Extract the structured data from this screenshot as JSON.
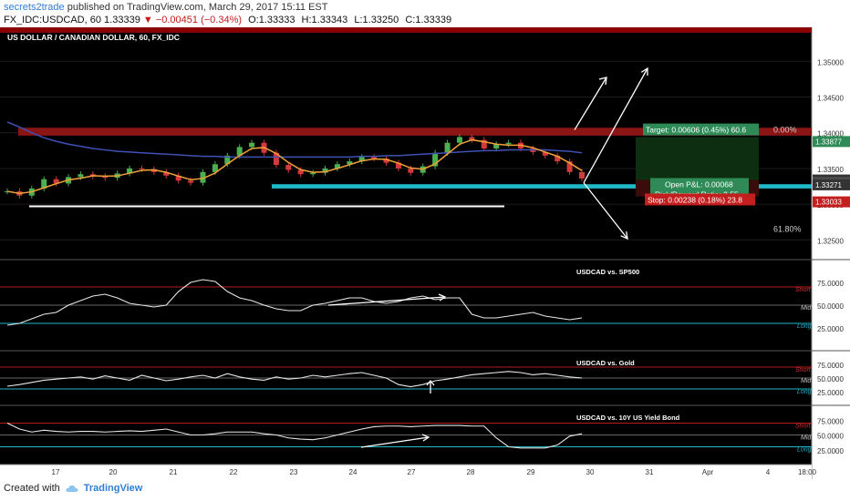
{
  "header": {
    "author": "secrets2trade",
    "published_text": "published on TradingView.com, March 29, 2017 15:11 EST",
    "symbol_line": "FX_IDC:USDCAD, 60",
    "last": "1.33339",
    "change": "−0.00451 (−0.34%)",
    "open": "O:1.33333",
    "high": "H:1.33343",
    "low": "L:1.33250",
    "close": "C:1.33339"
  },
  "chart_data": {
    "type": "line",
    "title": "US DOLLAR / CANADIAN DOLLAR, 60, FX_IDC",
    "price_axis": [
      "1.35000",
      "1.34500",
      "1.34000",
      "1.33500",
      "1.33000",
      "1.32500"
    ],
    "price_range": [
      1.3225,
      1.3545
    ],
    "x_labels": [
      "17",
      "20",
      "21",
      "22",
      "23",
      "24",
      "27",
      "28",
      "29",
      "30",
      "31",
      "Apr",
      "4",
      "18:00"
    ],
    "price_series": [
      1.3318,
      1.3312,
      1.3322,
      1.3335,
      1.3329,
      1.3338,
      1.3342,
      1.3339,
      1.3337,
      1.3343,
      1.335,
      1.3349,
      1.3345,
      1.334,
      1.3333,
      1.333,
      1.3345,
      1.3356,
      1.3368,
      1.338,
      1.3386,
      1.3372,
      1.3355,
      1.3348,
      1.3342,
      1.3344,
      1.335,
      1.3356,
      1.336,
      1.3366,
      1.3364,
      1.3358,
      1.335,
      1.3344,
      1.3353,
      1.3372,
      1.3386,
      1.3394,
      1.339,
      1.3378,
      1.3384,
      1.3386,
      1.3378,
      1.3373,
      1.3368,
      1.336,
      1.3345,
      1.3336
    ],
    "ma200": [
      1.3415,
      1.3408,
      1.34,
      1.3393,
      1.3388,
      1.3384,
      1.3381,
      1.3378,
      1.3376,
      1.3374,
      1.3373,
      1.3372,
      1.3371,
      1.337,
      1.3369,
      1.3368,
      1.3367,
      1.3367,
      1.3366,
      1.3366,
      1.3366,
      1.3366,
      1.3366,
      1.3366,
      1.3366,
      1.3366,
      1.3366,
      1.3366,
      1.3366,
      1.3367,
      1.3367,
      1.3368,
      1.3368,
      1.3369,
      1.337,
      1.3371,
      1.3372,
      1.3373,
      1.3374,
      1.3375,
      1.3375,
      1.3376,
      1.3376,
      1.3376,
      1.3376,
      1.3375,
      1.3374,
      1.3372
    ],
    "price_tags": [
      {
        "value": "1.33877",
        "color": "#2e8b57"
      },
      {
        "value": "1.33339",
        "color": "#333333"
      },
      {
        "value": "48.09",
        "color": "#4d4d4d"
      },
      {
        "value": "1.33271",
        "color": "#333333"
      },
      {
        "value": "1.33033",
        "color": "#c41f1f"
      }
    ],
    "fib_levels": [
      "0.00%",
      "61.80%"
    ],
    "position": {
      "target": "Target: 0.00606 (0.45%) 60.6",
      "pnl": "Open P&L: 0.00068",
      "rr": "Risk/Reward Ratio: 2.55",
      "stop": "Stop: 0.00238 (0.18%) 23.8"
    },
    "oscillators": [
      {
        "name": "USDCAD vs. SP500",
        "values": [
          28,
          30,
          35,
          40,
          42,
          50,
          55,
          60,
          62,
          58,
          52,
          50,
          48,
          50,
          65,
          75,
          78,
          76,
          65,
          58,
          55,
          50,
          46,
          44,
          44,
          50,
          52,
          55,
          58,
          58,
          54,
          52,
          54,
          58,
          60,
          56,
          58,
          58,
          40,
          36,
          36,
          38,
          40,
          42,
          38,
          36,
          34,
          36
        ]
      },
      {
        "name": "USDCAD vs. Gold",
        "values": [
          35,
          38,
          42,
          46,
          48,
          50,
          52,
          48,
          54,
          50,
          46,
          55,
          50,
          45,
          48,
          52,
          55,
          50,
          58,
          52,
          48,
          46,
          52,
          48,
          50,
          55,
          52,
          55,
          58,
          60,
          55,
          50,
          38,
          34,
          38,
          45,
          48,
          52,
          56,
          58,
          60,
          62,
          60,
          56,
          58,
          55,
          52,
          50
        ]
      },
      {
        "name": "USDCAD vs. 10Y US Yield Bond",
        "values": [
          70,
          60,
          55,
          58,
          56,
          55,
          56,
          56,
          55,
          56,
          57,
          56,
          58,
          60,
          55,
          50,
          50,
          52,
          55,
          55,
          55,
          52,
          50,
          45,
          43,
          42,
          45,
          50,
          55,
          60,
          64,
          65,
          65,
          64,
          65,
          66,
          66,
          66,
          65,
          65,
          45,
          30,
          28,
          28,
          28,
          33,
          48,
          52
        ]
      }
    ],
    "osc_axis": [
      "75.0000",
      "50.0000",
      "25.0000"
    ],
    "osc_levels": [
      "Short",
      "Mid",
      "Long"
    ]
  },
  "footer": {
    "created_with": "Created with",
    "brand": "TradingView"
  }
}
